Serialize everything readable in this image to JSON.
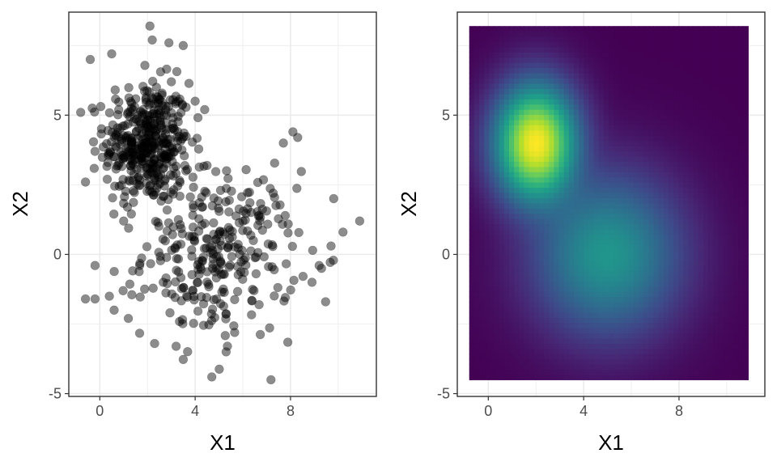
{
  "chart_data": [
    {
      "type": "scatter",
      "xlabel": "X1",
      "ylabel": "X2",
      "xlim": [
        -1.3,
        11.6
      ],
      "ylim": [
        -5.1,
        8.7
      ],
      "xticks": [
        0,
        4,
        8
      ],
      "yticks": [
        -5,
        0,
        5
      ],
      "grid": true,
      "point_color": "#000000",
      "point_opacity": 0.45,
      "points_note_count": 700,
      "clusters": [
        {
          "center": [
            2.0,
            4.0
          ],
          "sd": [
            0.9,
            1.1
          ],
          "n": 400
        },
        {
          "center": [
            5.0,
            0.0
          ],
          "sd": [
            1.6,
            1.5
          ],
          "n": 300
        }
      ],
      "points": [
        [
          -0.8,
          5.1
        ],
        [
          -0.4,
          7.0
        ],
        [
          0.5,
          7.2
        ],
        [
          2.1,
          8.2
        ],
        [
          2.2,
          7.7
        ],
        [
          2.9,
          7.6
        ],
        [
          3.5,
          7.5
        ],
        [
          -0.6,
          2.6
        ],
        [
          -0.2,
          3.7
        ],
        [
          -0.6,
          -1.6
        ],
        [
          -0.2,
          -1.6
        ],
        [
          0.4,
          -1.5
        ],
        [
          1.2,
          -2.3
        ],
        [
          4.7,
          -4.4
        ],
        [
          5.3,
          -3.5
        ],
        [
          10.9,
          1.2
        ],
        [
          10.2,
          0.8
        ],
        [
          9.7,
          0.3
        ],
        [
          9.2,
          -0.4
        ],
        [
          8.1,
          4.4
        ],
        [
          8.3,
          4.2
        ],
        [
          7.7,
          4.0
        ],
        [
          8.9,
          -1.0
        ],
        [
          9.3,
          -0.5
        ],
        [
          2.3,
          -3.2
        ],
        [
          3.2,
          -3.3
        ],
        [
          -0.2,
          -0.4
        ],
        [
          0.6,
          -2.0
        ],
        [
          1.0,
          1.2
        ],
        [
          3.0,
          6.2
        ],
        [
          4.4,
          5.2
        ],
        [
          4.0,
          5.5
        ]
      ]
    },
    {
      "type": "heatmap",
      "xlabel": "X1",
      "ylabel": "X2",
      "xlim": [
        -1.3,
        11.6
      ],
      "ylim": [
        -5.1,
        8.7
      ],
      "xticks": [
        0,
        4,
        8
      ],
      "yticks": [
        -5,
        0,
        5
      ],
      "grid": true,
      "extent_x": [
        -0.8,
        10.9
      ],
      "extent_y": [
        -4.5,
        8.2
      ],
      "colormap": "viridis",
      "density_peaks": [
        {
          "center": [
            2.0,
            3.7
          ],
          "level": 1.0
        },
        {
          "center": [
            5.2,
            0.0
          ],
          "level": 0.62
        }
      ]
    }
  ]
}
